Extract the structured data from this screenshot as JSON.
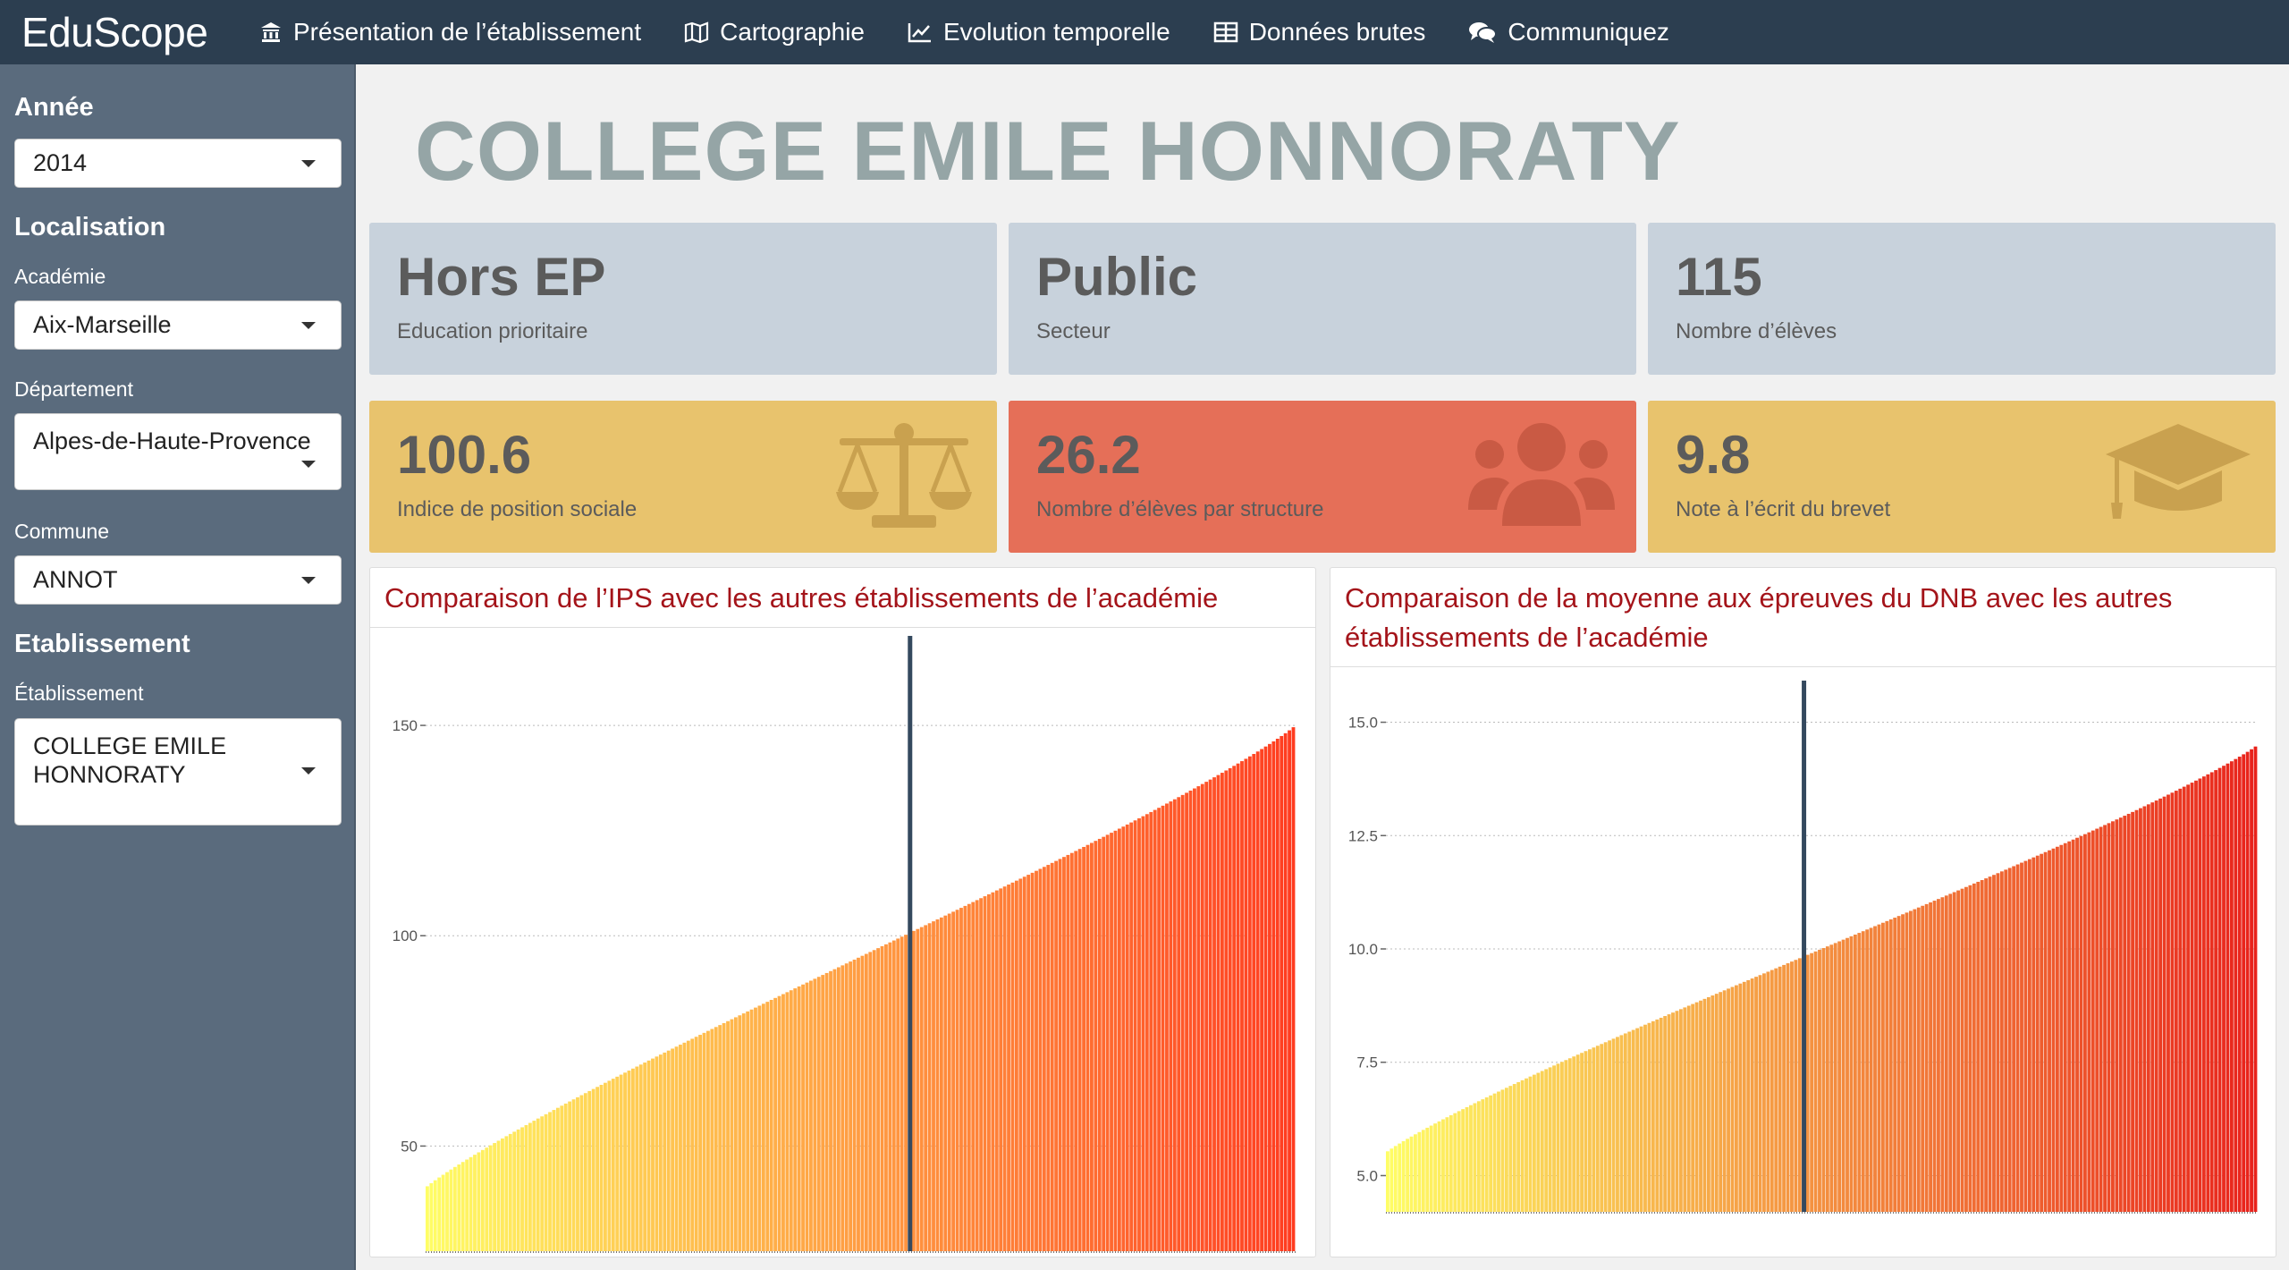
{
  "app": {
    "brand": "EduScope",
    "nav": [
      {
        "label": "Présentation de l’établissement",
        "icon": "bank-icon"
      },
      {
        "label": "Cartographie",
        "icon": "map-icon"
      },
      {
        "label": "Evolution temporelle",
        "icon": "line-chart-icon"
      },
      {
        "label": "Données brutes",
        "icon": "table-icon"
      },
      {
        "label": "Communiquez",
        "icon": "comments-icon"
      }
    ]
  },
  "sidebar": {
    "annee_heading": "Année",
    "annee_value": "2014",
    "localisation_heading": "Localisation",
    "academie_label": "Académie",
    "academie_value": "Aix-Marseille",
    "departement_label": "Département",
    "departement_value": "Alpes-de-Haute-Provence",
    "commune_label": "Commune",
    "commune_value": "ANNOT",
    "etablissement_heading": "Etablissement",
    "etablissement_label": "Établissement",
    "etablissement_value": "COLLEGE EMILE HONNORATY"
  },
  "main": {
    "title": "COLLEGE EMILE HONNORATY",
    "info_boxes": [
      {
        "value": "Hors EP",
        "label": "Education prioritaire"
      },
      {
        "value": "Public",
        "label": "Secteur"
      },
      {
        "value": "115",
        "label": "Nombre d’élèves"
      }
    ],
    "value_boxes": [
      {
        "value": "100.6",
        "label": "Indice de position sociale",
        "icon": "balance-scale-icon",
        "color": "#e8c36d"
      },
      {
        "value": "26.2",
        "label": "Nombre d’élèves par structure",
        "icon": "users-icon",
        "color": "#e56f58"
      },
      {
        "value": "9.8",
        "label": "Note à l’écrit du brevet",
        "icon": "graduation-cap-icon",
        "color": "#e8c36d"
      }
    ]
  },
  "chart_data": [
    {
      "type": "bar",
      "title": "Comparaison de l’IPS avec les autres établissements de l’académie",
      "ylim": [
        25,
        170
      ],
      "yticks": [
        50,
        100,
        150
      ],
      "ytick_labels": [
        "50",
        "100",
        "150"
      ],
      "n_bars": 220,
      "sorted_ascending": true,
      "value_min": 40,
      "value_max": 150,
      "highlight_value": 100.6,
      "color_low": "#ffff66",
      "color_high": "#ff3a1f",
      "highlight_color": "#34495e"
    },
    {
      "type": "bar",
      "title": "Comparaison de la moyenne aux épreuves du DNB avec les autres établissements de l’académie",
      "ylim": [
        4.2,
        15.8
      ],
      "yticks": [
        5.0,
        7.5,
        10.0,
        12.5,
        15.0
      ],
      "ytick_labels": [
        "5.0",
        "7.5",
        "10.0",
        "12.5",
        "15.0"
      ],
      "n_bars": 220,
      "sorted_ascending": true,
      "value_min": 5.5,
      "value_max": 14.5,
      "highlight_value": 9.8,
      "color_low": "#ffff66",
      "color_high": "#e8201a",
      "highlight_color": "#34495e"
    }
  ]
}
